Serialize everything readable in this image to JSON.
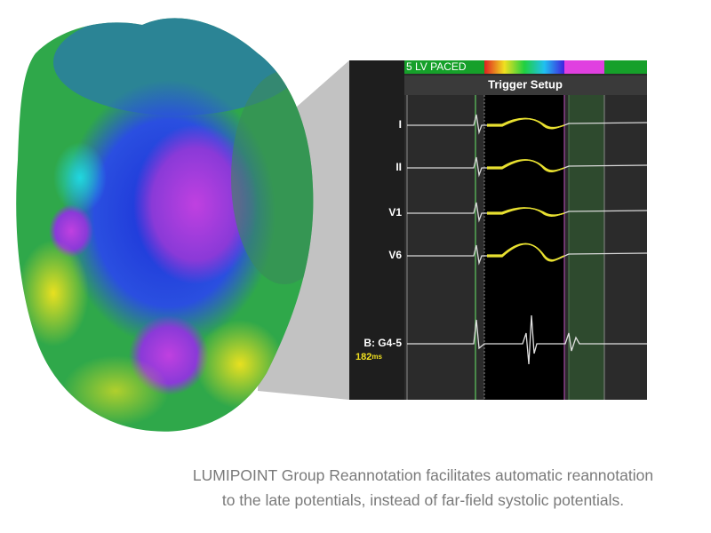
{
  "ecg_panel": {
    "rhythm_label": "5 LV PACED",
    "toolbar_title": "Trigger Setup",
    "leads": [
      "I",
      "II",
      "V1",
      "V6",
      "B: G4-5"
    ],
    "interval_value": "182",
    "interval_unit": "ms"
  },
  "caption": {
    "lines": [
      "LUMIPOINT Group Reannotation facilitates automatic reannotation",
      "to the late potentials, instead of far-field systolic potentials."
    ]
  }
}
